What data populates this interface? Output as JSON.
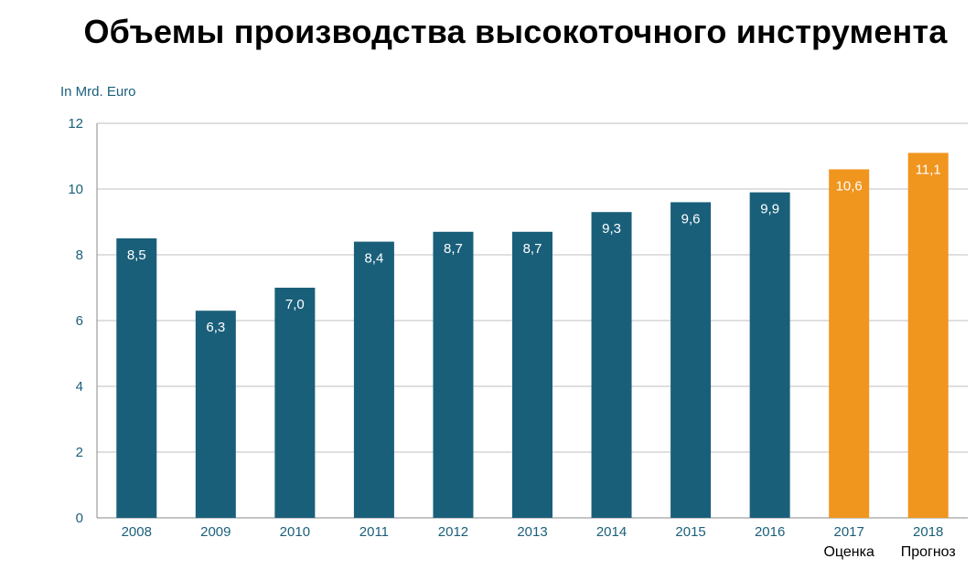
{
  "chart_data": {
    "type": "bar",
    "title": "Объемы производства высокоточного инструмента",
    "ylabel": "In Mrd. Euro",
    "xlabel": "",
    "ylim": [
      0,
      12
    ],
    "yticks": [
      0,
      2,
      4,
      6,
      8,
      10,
      12
    ],
    "grid": true,
    "categories": [
      "2008",
      "2009",
      "2010",
      "2011",
      "2012",
      "2013",
      "2014",
      "2015",
      "2016",
      "2017",
      "2018"
    ],
    "values": [
      8.5,
      6.3,
      7.0,
      8.4,
      8.7,
      8.7,
      9.3,
      9.6,
      9.9,
      10.6,
      11.1
    ],
    "value_labels": [
      "8,5",
      "6,3",
      "7,0",
      "8,4",
      "8,7",
      "8,7",
      "9,3",
      "9,6",
      "9,9",
      "10,6",
      "11,1"
    ],
    "bar_kinds": [
      "actual",
      "actual",
      "actual",
      "actual",
      "actual",
      "actual",
      "actual",
      "actual",
      "actual",
      "estimate",
      "forecast"
    ],
    "notes": {
      "2017": "Оценка",
      "2018": "Прогноз"
    },
    "colors": {
      "actual": "#1a5f7a",
      "estimate": "#f0951e",
      "forecast": "#f0951e",
      "axis_text": "#1a5f7a",
      "grid": "#bfbfbf"
    }
  }
}
